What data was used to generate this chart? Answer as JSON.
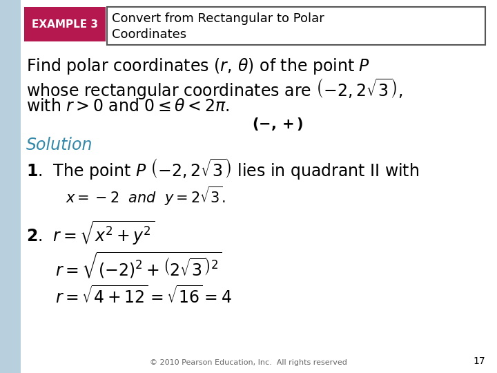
{
  "bg_color": "#dce8f0",
  "left_bar_color": "#b8d0de",
  "white_bg": "#ffffff",
  "example_box_color": "#b5174f",
  "example_text": "EXAMPLE 3",
  "title_line1": "Convert from Rectangular to Polar",
  "title_line2": "Coordinates",
  "title_box_border": "#555555",
  "solution_color": "#3388aa",
  "footer_text": "© 2010 Pearson Education, Inc.  All rights reserved",
  "page_number": "17"
}
